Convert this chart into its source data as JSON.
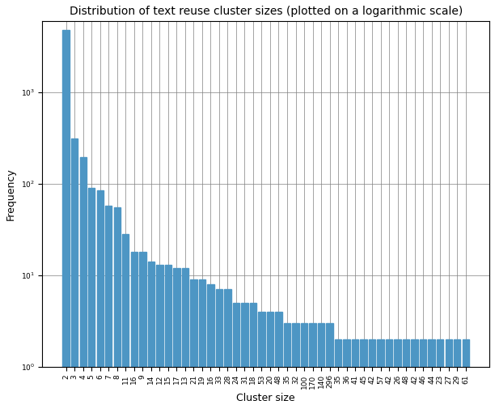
{
  "title": "Distribution of text reuse cluster sizes (plotted on a logarithmic scale)",
  "xlabel": "Cluster size",
  "ylabel": "Frequency",
  "bar_color": "#4d96c4",
  "categories": [
    "2",
    "3",
    "4",
    "5",
    "6",
    "7",
    "8",
    "11",
    "16",
    "9",
    "14",
    "12",
    "15",
    "17",
    "13",
    "21",
    "19",
    "16",
    "33",
    "28",
    "24",
    "31",
    "18",
    "53",
    "20",
    "48",
    "35",
    "32",
    "100",
    "170",
    "140",
    "296",
    "35",
    "36",
    "41",
    "45",
    "42",
    "57",
    "42",
    "26",
    "48",
    "42",
    "46",
    "44",
    "23",
    "27",
    "29",
    "61"
  ],
  "values": [
    4800,
    310,
    195,
    90,
    85,
    58,
    55,
    28,
    18,
    18,
    14,
    13,
    13,
    12,
    12,
    9,
    9,
    8,
    7,
    7,
    5,
    5,
    5,
    4,
    4,
    4,
    3,
    3,
    3,
    3,
    3,
    3,
    2,
    2,
    2,
    2,
    2,
    2,
    2,
    2,
    2,
    2,
    2,
    2,
    2,
    2,
    2,
    2
  ],
  "ylim_min": 1,
  "ylim_max": 6000,
  "title_fontsize": 10,
  "label_fontsize": 9,
  "tick_fontsize": 6.5,
  "fig_width": 6.12,
  "fig_height": 5.05,
  "dpi": 100
}
